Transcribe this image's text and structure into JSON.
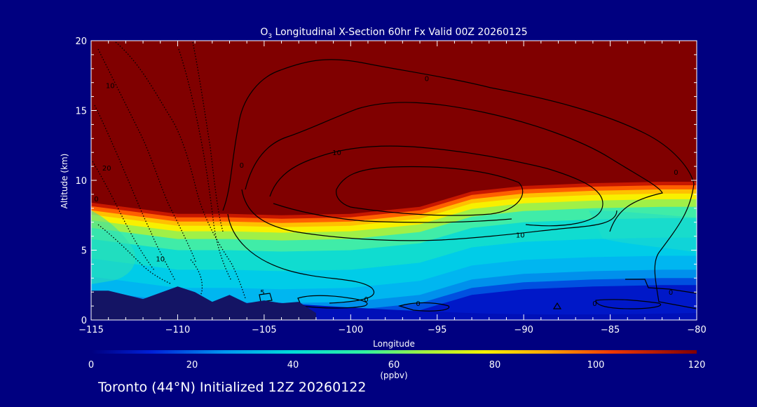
{
  "chart_data": {
    "type": "heatmap",
    "title_species": "O",
    "title_subscript": "3",
    "title_rest": " Longitudinal X-Section 60hr  Fx Valid 00Z 20260125",
    "xlabel": "Longitude",
    "ylabel": "Altitude (km)",
    "xlim": [
      -115,
      -80
    ],
    "ylim": [
      0,
      20
    ],
    "x_ticks": [
      -115,
      -110,
      -105,
      -100,
      -95,
      -90,
      -85,
      -80
    ],
    "x_tick_labels": [
      "−115",
      "−110",
      "−105",
      "−100",
      "−95",
      "−90",
      "−85",
      "−80"
    ],
    "y_ticks": [
      0,
      5,
      10,
      15,
      20
    ],
    "y_tick_labels": [
      "0",
      "5",
      "10",
      "15",
      "20"
    ],
    "colorbar": {
      "range": [
        0,
        120
      ],
      "ticks": [
        0,
        20,
        40,
        60,
        80,
        100,
        120
      ],
      "tick_labels": [
        "0",
        "20",
        "40",
        "60",
        "80",
        "100",
        "120"
      ],
      "units": "(ppbv)"
    },
    "tropopause_altitude_km": {
      "longitudes": [
        -115,
        -110,
        -107,
        -104,
        -100,
        -96,
        -93,
        -90,
        -86,
        -82,
        -80
      ],
      "altitudes": [
        8.4,
        7.6,
        7.6,
        7.5,
        7.6,
        8.1,
        9.2,
        9.6,
        9.8,
        9.9,
        9.9
      ]
    },
    "terrain_altitude_km": {
      "longitudes": [
        -115,
        -114,
        -112,
        -110,
        -109,
        -108,
        -107,
        -106,
        -105,
        -104,
        -103,
        -102
      ],
      "altitudes": [
        2.1,
        2.1,
        1.5,
        2.4,
        2.0,
        1.3,
        1.8,
        1.2,
        1.4,
        1.2,
        1.3,
        0.5
      ]
    },
    "contour_labels": [
      {
        "text": "0",
        "lon": -95.6,
        "alt": 17.1
      },
      {
        "text": "0",
        "lon": -81.2,
        "alt": 10.4
      },
      {
        "text": "0",
        "lon": -106.3,
        "alt": 10.9
      },
      {
        "text": "10",
        "lon": -100.8,
        "alt": 11.8
      },
      {
        "text": "10",
        "lon": -90.2,
        "alt": 5.9
      },
      {
        "text": "10",
        "lon": -113.9,
        "alt": 16.6
      },
      {
        "text": "20",
        "lon": -114.1,
        "alt": 10.7
      },
      {
        "text": "0",
        "lon": -114.7,
        "alt": 8.5
      },
      {
        "text": "10",
        "lon": -111.0,
        "alt": 4.2
      },
      {
        "text": "0",
        "lon": -99.1,
        "alt": 1.3
      },
      {
        "text": "0",
        "lon": -96.1,
        "alt": 1.0
      },
      {
        "text": "0",
        "lon": -85.9,
        "alt": 1.0
      },
      {
        "text": "0",
        "lon": -81.5,
        "alt": 1.8
      },
      {
        "text": "5",
        "lon": -105.1,
        "alt": 1.8
      }
    ]
  },
  "caption": "Toronto (44°N) Initialized 12Z 20260122",
  "colors": {
    "background": "#000080",
    "stratosphere": "#800000",
    "terrain": "#141464",
    "contour": "#000000"
  }
}
